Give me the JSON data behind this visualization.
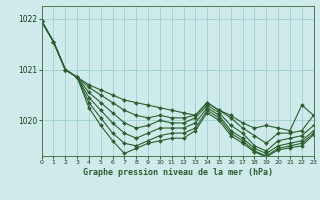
{
  "title": "Graphe pression niveau de la mer (hPa)",
  "bg_color": "#ceeaea",
  "grid_color": "#9ecece",
  "line_color": "#2d5e2d",
  "marker": "D",
  "marker_size": 2.0,
  "line_width": 0.8,
  "xlim": [
    0,
    23
  ],
  "ylim": [
    1019.3,
    1022.25
  ],
  "yticks": [
    1020,
    1021,
    1022
  ],
  "xticks": [
    0,
    1,
    2,
    3,
    4,
    5,
    6,
    7,
    8,
    9,
    10,
    11,
    12,
    13,
    14,
    15,
    16,
    17,
    18,
    19,
    20,
    21,
    22,
    23
  ],
  "series": [
    [
      1021.95,
      1021.55,
      1021.0,
      1020.85,
      1020.7,
      1020.6,
      1020.5,
      1020.4,
      1020.35,
      1020.3,
      1020.25,
      1020.2,
      1020.15,
      1020.1,
      1020.35,
      1020.2,
      1020.1,
      1019.95,
      1019.85,
      1019.9,
      1019.85,
      1019.8,
      1020.3,
      1020.1
    ],
    [
      1021.95,
      1021.55,
      1021.0,
      1020.85,
      1020.65,
      1020.5,
      1020.35,
      1020.2,
      1020.1,
      1020.05,
      1020.1,
      1020.05,
      1020.05,
      1020.1,
      1020.35,
      1020.2,
      1020.05,
      1019.85,
      1019.7,
      1019.55,
      1019.75,
      1019.75,
      1019.8,
      1020.1
    ],
    [
      1021.95,
      1021.55,
      1021.0,
      1020.85,
      1020.55,
      1020.35,
      1020.15,
      1019.95,
      1019.85,
      1019.9,
      1020.0,
      1019.95,
      1019.95,
      1020.05,
      1020.3,
      1020.15,
      1019.9,
      1019.75,
      1019.5,
      1019.4,
      1019.6,
      1019.65,
      1019.7,
      1019.9
    ],
    [
      1021.95,
      1021.55,
      1021.0,
      1020.85,
      1020.45,
      1020.2,
      1019.95,
      1019.75,
      1019.65,
      1019.75,
      1019.85,
      1019.85,
      1019.85,
      1019.95,
      1020.25,
      1020.1,
      1019.8,
      1019.65,
      1019.45,
      1019.35,
      1019.5,
      1019.55,
      1019.6,
      1019.8
    ],
    [
      1021.95,
      1021.55,
      1021.0,
      1020.85,
      1020.35,
      1020.05,
      1019.75,
      1019.55,
      1019.5,
      1019.6,
      1019.7,
      1019.75,
      1019.75,
      1019.85,
      1020.2,
      1020.05,
      1019.75,
      1019.6,
      1019.4,
      1019.3,
      1019.45,
      1019.5,
      1019.55,
      1019.75
    ],
    [
      1021.95,
      1021.55,
      1021.0,
      1020.85,
      1020.25,
      1019.9,
      1019.6,
      1019.35,
      1019.45,
      1019.55,
      1019.6,
      1019.65,
      1019.65,
      1019.8,
      1020.15,
      1020.0,
      1019.7,
      1019.55,
      1019.38,
      1019.28,
      1019.42,
      1019.46,
      1019.5,
      1019.72
    ]
  ]
}
